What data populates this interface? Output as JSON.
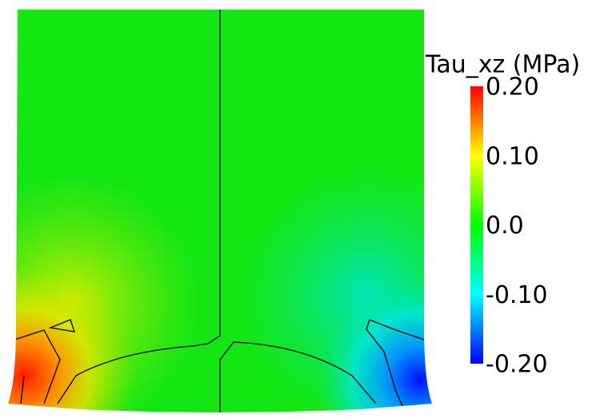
{
  "chart_data": {
    "type": "contour",
    "colorbar_title": "Tau_xz (MPa)",
    "clim": [
      -0.2,
      0.2
    ],
    "colorbar_ticks": [
      {
        "value": 0.2,
        "label": "0.20"
      },
      {
        "value": 0.1,
        "label": "0.10"
      },
      {
        "value": 0,
        "label": "0.0"
      },
      {
        "value": -0.1,
        "label": "-0.10"
      },
      {
        "value": -0.2,
        "label": "-0.20"
      }
    ]
  }
}
